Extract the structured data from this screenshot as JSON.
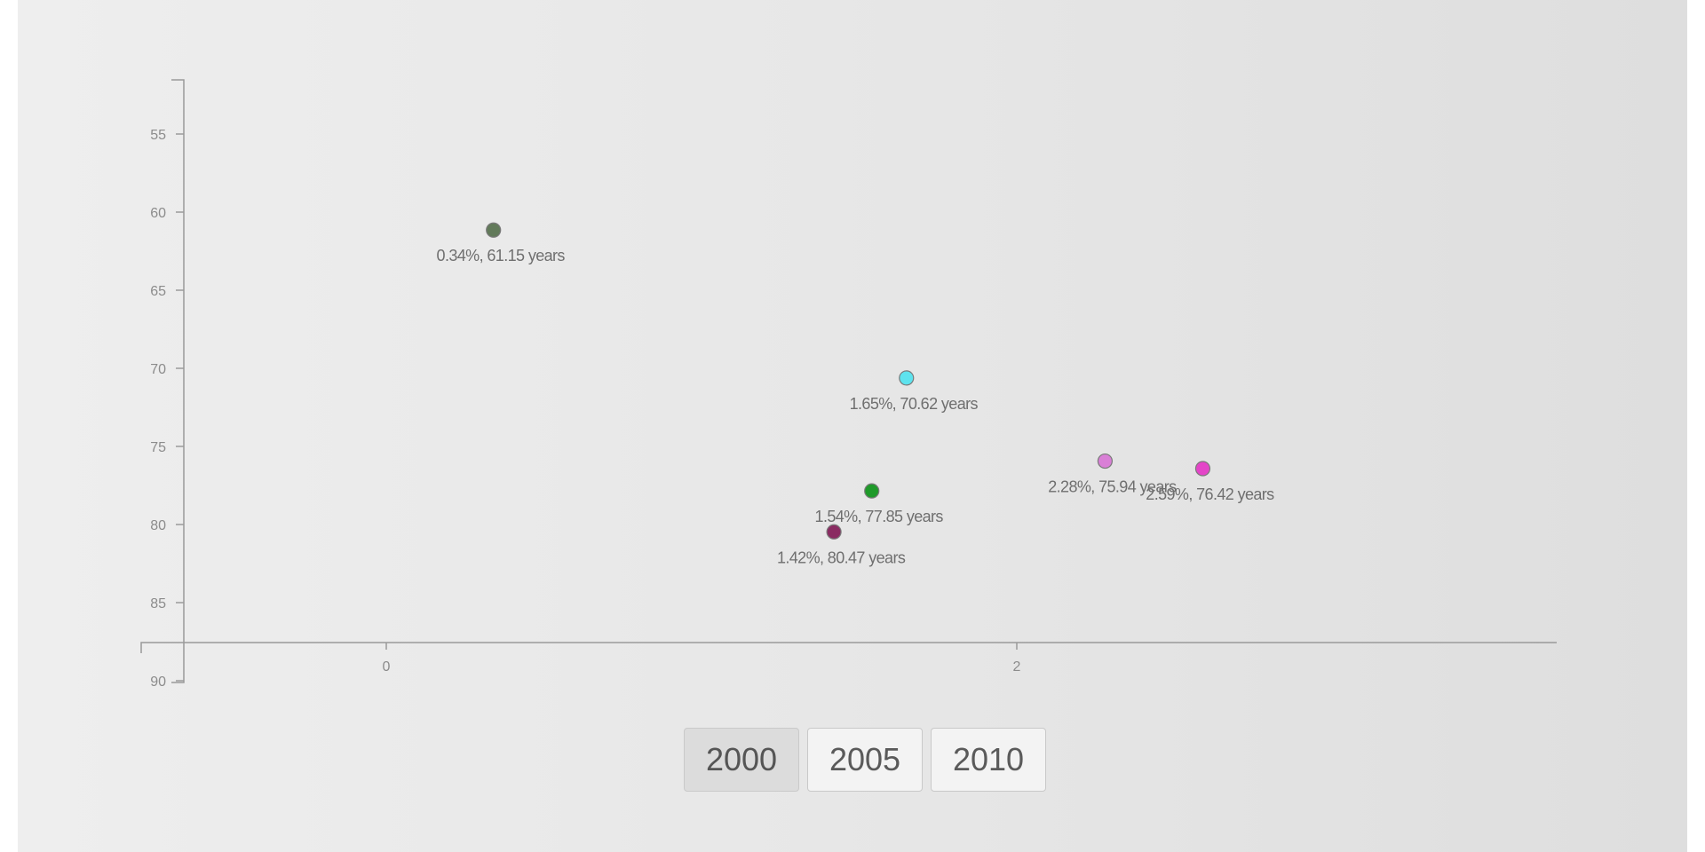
{
  "chart_data": {
    "type": "scatter",
    "title": "",
    "xlabel": "",
    "ylabel": "",
    "x_ticks": [
      0,
      2
    ],
    "y_ticks": [
      55,
      60,
      65,
      70,
      75,
      80,
      85,
      90
    ],
    "ylim": [
      51.5,
      90
    ],
    "y_axis_inverted": true,
    "grid": false,
    "legend": "none",
    "points": [
      {
        "x": 0.34,
        "y": 61.15,
        "label": "0.34%, 61.15 years",
        "color": "#627a5a"
      },
      {
        "x": 1.65,
        "y": 70.62,
        "label": "1.65%, 70.62 years",
        "color": "#5ee3ee"
      },
      {
        "x": 1.54,
        "y": 77.85,
        "label": "1.54%, 77.85 years",
        "color": "#1f9a2a"
      },
      {
        "x": 1.42,
        "y": 80.47,
        "label": "1.42%, 80.47 years",
        "color": "#8a2c62"
      },
      {
        "x": 2.28,
        "y": 75.94,
        "label": "2.28%, 75.94 years",
        "color": "#d97fd6"
      },
      {
        "x": 2.59,
        "y": 76.42,
        "label": "2.59%, 76.42 years",
        "color": "#e445c8"
      }
    ]
  },
  "year_buttons": [
    {
      "label": "2000",
      "active": true
    },
    {
      "label": "2005",
      "active": false
    },
    {
      "label": "2010",
      "active": false
    }
  ]
}
